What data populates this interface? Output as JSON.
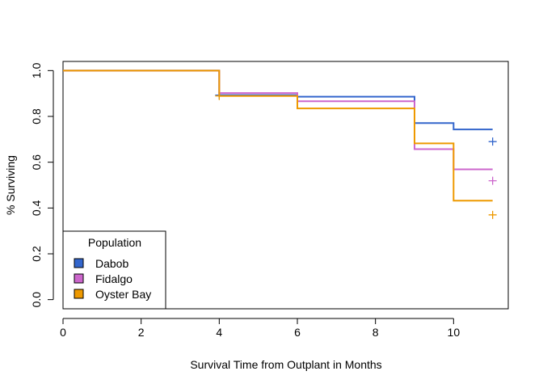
{
  "chart_data": {
    "type": "line",
    "subtype": "step",
    "title": "",
    "xlabel": "Survival Time from Outplant in Months",
    "ylabel": "% Surviving",
    "xlim": [
      0,
      11.4
    ],
    "ylim": [
      -0.04,
      1.04
    ],
    "xticks": [
      0,
      2,
      4,
      6,
      8,
      10
    ],
    "yticks": [
      0.0,
      0.2,
      0.4,
      0.6,
      0.8,
      1.0
    ],
    "xtick_labels": [
      "0",
      "2",
      "4",
      "6",
      "8",
      "10"
    ],
    "ytick_labels": [
      "0.0",
      "0.2",
      "0.4",
      "0.6",
      "0.8",
      "1.0"
    ],
    "grid": false,
    "legend": {
      "title": "Population",
      "position": "bottom-left",
      "entries": [
        "Dabob",
        "Fidalgo",
        "Oyster Bay"
      ]
    },
    "series": [
      {
        "name": "Dabob",
        "color": "#3366CC",
        "steps": [
          [
            0,
            1.0
          ],
          [
            4,
            0.893
          ],
          [
            6,
            0.886
          ],
          [
            9,
            0.771
          ],
          [
            10,
            0.743
          ],
          [
            11,
            0.743
          ]
        ],
        "censored": [
          [
            4,
            0.893
          ],
          [
            11,
            0.69
          ]
        ]
      },
      {
        "name": "Fidalgo",
        "color": "#CC66CC",
        "steps": [
          [
            0,
            1.0
          ],
          [
            4,
            0.902
          ],
          [
            6,
            0.866
          ],
          [
            9,
            0.657
          ],
          [
            10,
            0.569
          ],
          [
            11,
            0.569
          ]
        ],
        "censored": [
          [
            11,
            0.519
          ]
        ]
      },
      {
        "name": "Oyster Bay",
        "color": "#EE9900",
        "steps": [
          [
            0,
            1.0
          ],
          [
            4,
            0.889
          ],
          [
            6,
            0.835
          ],
          [
            9,
            0.682
          ],
          [
            10,
            0.432
          ],
          [
            11,
            0.432
          ]
        ],
        "censored": [
          [
            4,
            0.889
          ],
          [
            11,
            0.37
          ]
        ]
      }
    ]
  }
}
